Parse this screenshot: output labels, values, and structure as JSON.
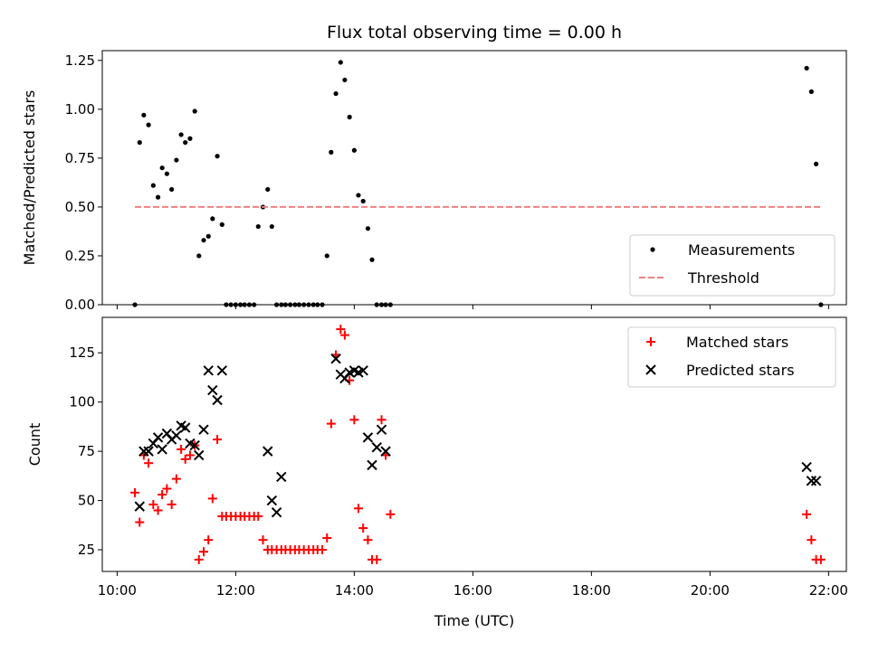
{
  "chart_data": [
    {
      "type": "scatter",
      "title": "Flux total observing time = 0.00 h",
      "xlabel": "",
      "ylabel": "Matched/Predicted stars",
      "x_unit": "hours UTC",
      "xlim": [
        9.75,
        22.3
      ],
      "ylim": [
        0,
        1.3
      ],
      "yticks": [
        0.0,
        0.25,
        0.5,
        0.75,
        1.0,
        1.25
      ],
      "ytick_labels": [
        "0.00",
        "0.25",
        "0.50",
        "0.75",
        "1.00",
        "1.25"
      ],
      "legend_position": "lower-right",
      "series": [
        {
          "name": "Measurements",
          "marker": "dot",
          "color": "#000000",
          "x": [
            10.3,
            10.38,
            10.45,
            10.53,
            10.61,
            10.69,
            10.76,
            10.84,
            10.92,
            11.0,
            11.08,
            11.15,
            11.23,
            11.31,
            11.38,
            11.46,
            11.54,
            11.61,
            11.69,
            11.77,
            11.84,
            11.92,
            12.0,
            12.08,
            12.15,
            12.23,
            12.31,
            12.38,
            12.46,
            12.54,
            12.61,
            12.69,
            12.77,
            12.84,
            12.92,
            13.0,
            13.07,
            13.15,
            13.23,
            13.31,
            13.38,
            13.46,
            13.54,
            13.61,
            13.69,
            13.77,
            13.84,
            13.92,
            14.0,
            14.07,
            14.15,
            14.23,
            14.3,
            14.38,
            14.46,
            14.53,
            14.61,
            21.63,
            21.71,
            21.79,
            21.87
          ],
          "y": [
            0.0,
            0.83,
            0.97,
            0.92,
            0.61,
            0.55,
            0.7,
            0.67,
            0.59,
            0.74,
            0.87,
            0.83,
            0.85,
            0.99,
            0.25,
            0.33,
            0.35,
            0.44,
            0.76,
            0.41,
            0.0,
            0.0,
            0.0,
            0.0,
            0.0,
            0.0,
            0.0,
            0.4,
            0.5,
            0.59,
            0.4,
            0.0,
            0.0,
            0.0,
            0.0,
            0.0,
            0.0,
            0.0,
            0.0,
            0.0,
            0.0,
            0.0,
            0.25,
            0.78,
            1.08,
            1.24,
            1.15,
            0.96,
            0.79,
            0.56,
            0.53,
            0.39,
            0.23,
            0.0,
            0.0,
            0.0,
            0.0,
            1.21,
            1.09,
            0.72,
            0.0
          ]
        },
        {
          "name": "Threshold",
          "type": "line",
          "style": "dashed",
          "color": "#f08080",
          "x": [
            10.3,
            21.87
          ],
          "y": [
            0.5,
            0.5
          ]
        }
      ]
    },
    {
      "type": "scatter",
      "title": "",
      "xlabel": "Time (UTC)",
      "ylabel": "Count",
      "x_unit": "hours UTC",
      "xlim": [
        9.75,
        22.3
      ],
      "ylim": [
        14,
        143
      ],
      "xticks": [
        10,
        12,
        14,
        16,
        18,
        20,
        22
      ],
      "xtick_labels": [
        "10:00",
        "12:00",
        "14:00",
        "16:00",
        "18:00",
        "20:00",
        "22:00"
      ],
      "yticks": [
        25,
        50,
        75,
        100,
        125
      ],
      "ytick_labels": [
        "25",
        "50",
        "75",
        "100",
        "125"
      ],
      "legend_position": "upper-right",
      "series": [
        {
          "name": "Matched stars",
          "marker": "plus",
          "color": "#ff0000",
          "x": [
            10.3,
            10.38,
            10.45,
            10.53,
            10.61,
            10.69,
            10.76,
            10.84,
            10.92,
            11.0,
            11.08,
            11.15,
            11.23,
            11.31,
            11.38,
            11.46,
            11.54,
            11.61,
            11.69,
            11.77,
            11.84,
            11.92,
            12.0,
            12.08,
            12.15,
            12.23,
            12.31,
            12.38,
            12.46,
            12.54,
            12.61,
            12.69,
            12.77,
            12.84,
            12.92,
            13.0,
            13.07,
            13.15,
            13.23,
            13.31,
            13.38,
            13.46,
            13.54,
            13.61,
            13.69,
            13.77,
            13.84,
            13.92,
            14.0,
            14.07,
            14.15,
            14.23,
            14.3,
            14.38,
            14.46,
            14.53,
            14.61,
            21.63,
            21.71,
            21.79,
            21.87
          ],
          "y": [
            54,
            39,
            73,
            69,
            48,
            45,
            53,
            56,
            48,
            61,
            76,
            71,
            73,
            78,
            20,
            24,
            30,
            51,
            81,
            42,
            42,
            42,
            42,
            42,
            42,
            42,
            42,
            42,
            30,
            25,
            25,
            25,
            25,
            25,
            25,
            25,
            25,
            25,
            25,
            25,
            25,
            25,
            31,
            89,
            124,
            137,
            134,
            111,
            91,
            46,
            36,
            30,
            20,
            20,
            91,
            73,
            43,
            43,
            30,
            20,
            20
          ]
        },
        {
          "name": "Predicted stars",
          "marker": "x",
          "color": "#000000",
          "x": [
            10.38,
            10.45,
            10.53,
            10.61,
            10.69,
            10.76,
            10.84,
            10.92,
            11.0,
            11.08,
            11.15,
            11.23,
            11.31,
            11.38,
            11.46,
            11.54,
            11.61,
            11.69,
            11.77,
            12.54,
            12.61,
            12.69,
            12.77,
            13.69,
            13.77,
            13.84,
            13.92,
            14.0,
            14.07,
            14.15,
            14.23,
            14.3,
            14.38,
            14.46,
            14.53,
            21.63,
            21.71,
            21.79
          ],
          "y": [
            47,
            75,
            75,
            79,
            82,
            76,
            84,
            81,
            83,
            88,
            87,
            79,
            78,
            73,
            86,
            116,
            106,
            101,
            116,
            75,
            50,
            44,
            62,
            122,
            114,
            112,
            115,
            116,
            115,
            116,
            82,
            68,
            77,
            86,
            75,
            67,
            60,
            60
          ]
        }
      ]
    }
  ]
}
